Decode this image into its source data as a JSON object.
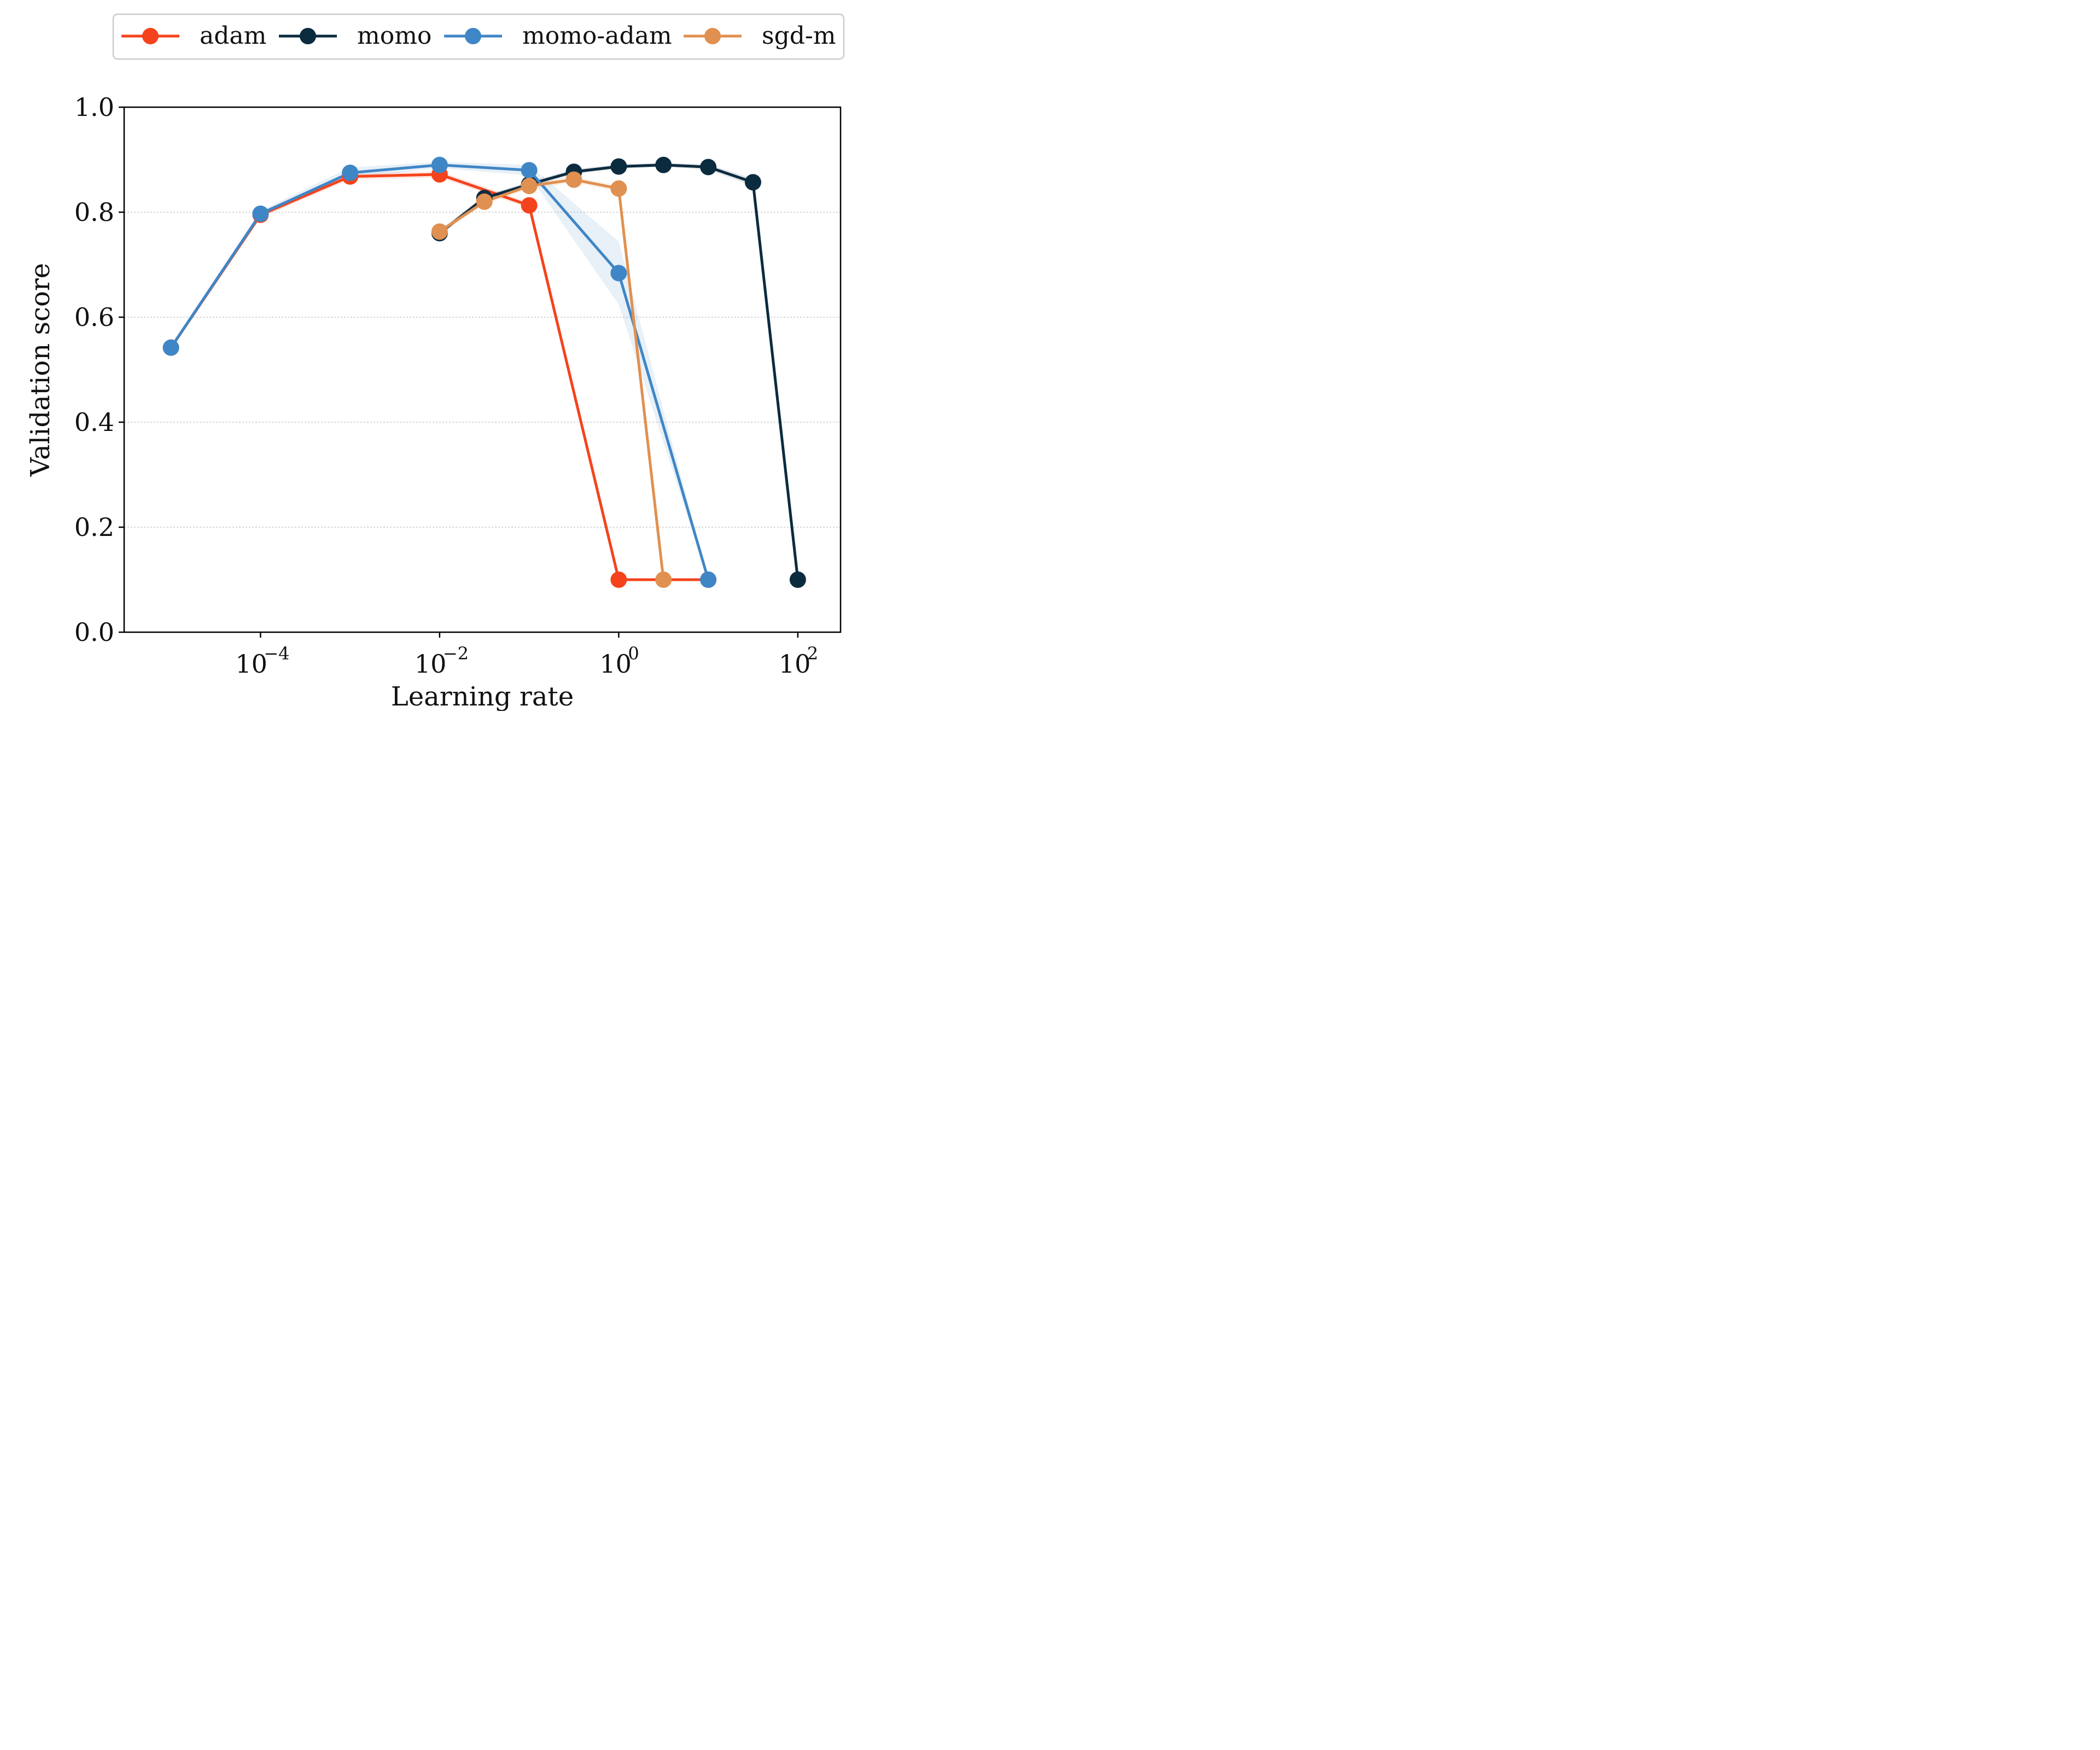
{
  "chart_data": {
    "type": "line",
    "xlabel": "Learning rate",
    "ylabel": "Validation score",
    "xscale": "log",
    "xlim": [
      3e-06,
      300
    ],
    "ylim": [
      0,
      1
    ],
    "grid": "horizontal dotted",
    "legend": "top",
    "x_ticks": [
      {
        "value": 0.0001,
        "base": "10",
        "exp": "−4"
      },
      {
        "value": 0.01,
        "base": "10",
        "exp": "−2"
      },
      {
        "value": 1,
        "base": "10",
        "exp": "0"
      },
      {
        "value": 100,
        "base": "10",
        "exp": "2"
      }
    ],
    "y_ticks": [
      {
        "value": 0.0,
        "label": "0.0"
      },
      {
        "value": 0.2,
        "label": "0.2"
      },
      {
        "value": 0.4,
        "label": "0.4"
      },
      {
        "value": 0.6,
        "label": "0.6"
      },
      {
        "value": 0.8,
        "label": "0.8"
      },
      {
        "value": 1.0,
        "label": "1.0"
      }
    ],
    "series": [
      {
        "name": "adam",
        "color": "#f4431c",
        "x": [
          1e-05,
          0.0001,
          0.001,
          0.01,
          0.1,
          1,
          10
        ],
        "y": [
          0.542,
          0.795,
          0.868,
          0.872,
          0.813,
          0.1,
          0.1
        ],
        "band": [
          0.005,
          0.006,
          0.006,
          0.006,
          0.006,
          0.001,
          0.001
        ]
      },
      {
        "name": "momo",
        "color": "#0b2b3f",
        "x": [
          0.01,
          0.0316,
          0.1,
          0.316,
          1,
          3.16,
          10,
          31.6,
          100
        ],
        "y": [
          0.76,
          0.827,
          0.853,
          0.877,
          0.887,
          0.89,
          0.886,
          0.857,
          0.1
        ],
        "band": [
          0.005,
          0.005,
          0.005,
          0.005,
          0.004,
          0.004,
          0.005,
          0.007,
          0.001
        ]
      },
      {
        "name": "momo-adam",
        "color": "#3f86c6",
        "x": [
          1e-05,
          0.0001,
          0.001,
          0.01,
          0.1,
          1,
          10
        ],
        "y": [
          0.542,
          0.797,
          0.875,
          0.89,
          0.88,
          0.684,
          0.1
        ],
        "band": [
          0.005,
          0.006,
          0.01,
          0.006,
          0.01,
          0.06,
          0.001
        ]
      },
      {
        "name": "sgd-m",
        "color": "#e09050",
        "x": [
          0.01,
          0.0316,
          0.1,
          0.316,
          1,
          3.16
        ],
        "y": [
          0.763,
          0.82,
          0.85,
          0.862,
          0.845,
          0.1
        ],
        "band": [
          0.005,
          0.006,
          0.006,
          0.006,
          0.006,
          0.001
        ]
      }
    ]
  }
}
